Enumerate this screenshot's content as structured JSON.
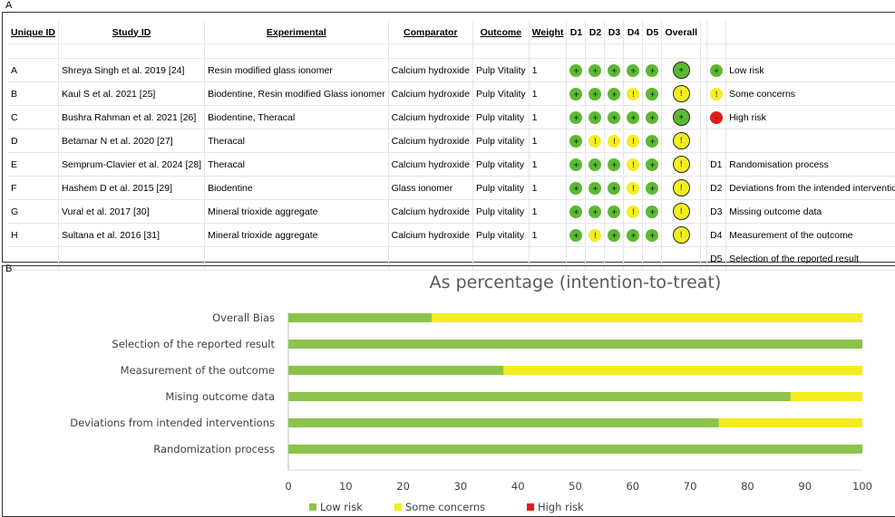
{
  "panel_a_label": "A",
  "panel_b_label": "B",
  "table": {
    "headers": {
      "uid": "Unique ID",
      "study": "Study ID",
      "experimental": "Experimental",
      "comparator": "Comparator",
      "outcome": "Outcome",
      "weight": "Weight",
      "d1": "D1",
      "d2": "D2",
      "d3": "D3",
      "d4": "D4",
      "d5": "D5",
      "overall": "Overall"
    },
    "rows": [
      {
        "uid": "A",
        "study": "Shreya Singh et al. 2019 [24]",
        "experimental": "Resin modified glass ionomer",
        "comparator": "Calcium hydroxide",
        "outcome": "Pulp Vitality",
        "weight": "1",
        "d": [
          "low",
          "low",
          "low",
          "low",
          "low"
        ],
        "overall": "low"
      },
      {
        "uid": "B",
        "study": "Kaul S et al. 2021 [25]",
        "experimental": "Biodentine, Resin modified Glass ionomer",
        "comparator": "Calcium hydroxide",
        "outcome": "Pulp Vitality",
        "weight": "1",
        "d": [
          "low",
          "low",
          "low",
          "some",
          "low"
        ],
        "overall": "some"
      },
      {
        "uid": "C",
        "study": "Bushra Rahman et al. 2021 [26]",
        "experimental": "Biodentine, Theracal",
        "comparator": "Calcium hydroxide",
        "outcome": "Pulp vitality",
        "weight": "1",
        "d": [
          "low",
          "low",
          "low",
          "low",
          "low"
        ],
        "overall": "low"
      },
      {
        "uid": "D",
        "study": "Betamar N et al. 2020 [27]",
        "experimental": "Theracal",
        "comparator": "Calcium hydroxide",
        "outcome": "Pulp vitality",
        "weight": "1",
        "d": [
          "low",
          "some",
          "some",
          "some",
          "low"
        ],
        "overall": "some"
      },
      {
        "uid": "E",
        "study": "Semprum-Clavier et al. 2024 [28]",
        "experimental": "Theracal",
        "comparator": "Calcium hydroxide",
        "outcome": "Pulp vitality",
        "weight": "1",
        "d": [
          "low",
          "low",
          "low",
          "some",
          "low"
        ],
        "overall": "some"
      },
      {
        "uid": "F",
        "study": "Hashem D et al. 2015 [29]",
        "experimental": "Biodentine",
        "comparator": "Glass ionomer",
        "outcome": "Pulp vitality",
        "weight": "1",
        "d": [
          "low",
          "low",
          "low",
          "some",
          "low"
        ],
        "overall": "some"
      },
      {
        "uid": "G",
        "study": "Vural et al. 2017 [30]",
        "experimental": "Mineral trioxide aggregate",
        "comparator": "Calcium hydroxide",
        "outcome": "Pulp vitality",
        "weight": "1",
        "d": [
          "low",
          "low",
          "low",
          "some",
          "low"
        ],
        "overall": "some"
      },
      {
        "uid": "H",
        "study": "Sultana et al. 2016 [31]",
        "experimental": "Mineral trioxide aggregate",
        "comparator": "Calcium hydroxide",
        "outcome": "Pulp vitality",
        "weight": "1",
        "d": [
          "low",
          "some",
          "low",
          "low",
          "low"
        ],
        "overall": "some"
      }
    ],
    "symbols": {
      "low": "+",
      "some": "!",
      "high": "-"
    },
    "legend": {
      "low": "Low risk",
      "some": "Some concerns",
      "high": "High risk",
      "domains": [
        {
          "code": "D1",
          "label": "Randomisation process"
        },
        {
          "code": "D2",
          "label": "Deviations from the intended interventions"
        },
        {
          "code": "D3",
          "label": "Missing outcome data"
        },
        {
          "code": "D4",
          "label": "Measurement of the outcome"
        },
        {
          "code": "D5",
          "label": "Selection of the reported result"
        }
      ]
    }
  },
  "colors": {
    "low": "#5cb833",
    "some": "#f2ee22",
    "high": "#e21c1c",
    "bar_low": "#8cc34a",
    "bar_some": "#f5ec1f",
    "bar_high": "#e21c1c"
  },
  "chart_data": {
    "type": "bar",
    "orientation": "horizontal",
    "stacked": true,
    "title": "As percentage (intention-to-treat)",
    "categories": [
      "Overall Bias",
      "Selection of the reported result",
      "Measurement of the outcome",
      "Mising outcome data",
      "Deviations from intended interventions",
      "Randomization process"
    ],
    "series": [
      {
        "name": "Low risk",
        "values": [
          25,
          100,
          37.5,
          87.5,
          75,
          100
        ]
      },
      {
        "name": "Some concerns",
        "values": [
          75,
          0,
          62.5,
          12.5,
          25,
          0
        ]
      },
      {
        "name": "High risk",
        "values": [
          0,
          0,
          0,
          0,
          0,
          0
        ]
      }
    ],
    "xlim": [
      0,
      100
    ],
    "xticks": [
      0,
      10,
      20,
      30,
      40,
      50,
      60,
      70,
      80,
      90,
      100
    ],
    "grid": false,
    "legend": "bottom"
  }
}
